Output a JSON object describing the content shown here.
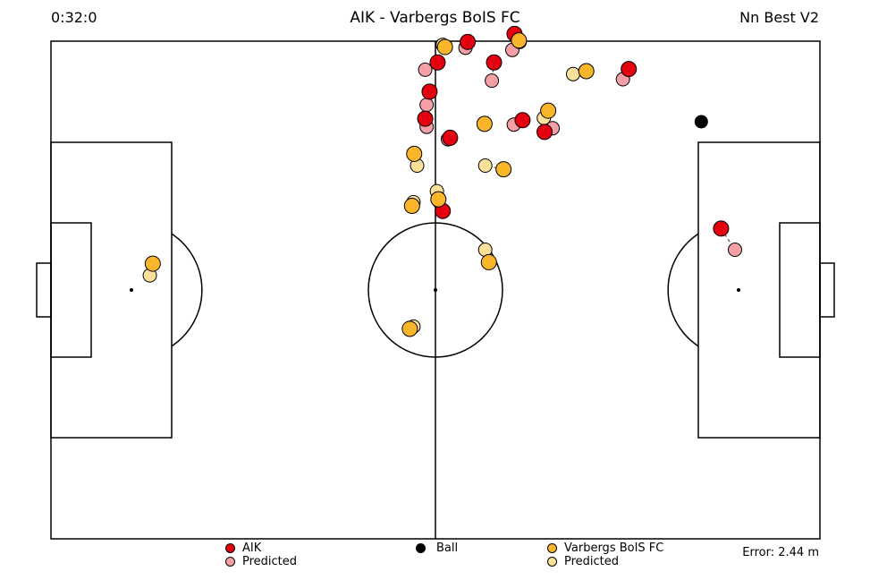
{
  "header": {
    "clock": "0:32:0",
    "title": "AIK - Varbergs BoIS FC",
    "model": "Nn Best V2"
  },
  "colors": {
    "aik": "#e3000f",
    "aik_pred": "#f4a0a6",
    "varberg": "#f9b62b",
    "varberg_pred": "#fde19b",
    "ball": "#000000",
    "lines": "#000000"
  },
  "legend": {
    "aik_label": "AIK",
    "aik_pred_label": "Predicted",
    "ball_label": "Ball",
    "varberg_label": "Varbergs BoIS FC",
    "varberg_pred_label": "Predicted"
  },
  "error": "Error: 2.44 m",
  "pitch": {
    "length_m": 105,
    "width_m": 68
  },
  "players": {
    "aik": [
      {
        "actual": [
          51.7,
          6.9
        ],
        "pred": [
          51.3,
          8.7
        ]
      },
      {
        "actual": [
          51.1,
          10.6
        ],
        "pred": [
          51.3,
          11.7
        ]
      },
      {
        "actual": [
          54.5,
          13.2
        ],
        "pred": [
          54.2,
          13.4
        ]
      },
      {
        "actual": [
          67.4,
          12.4
        ],
        "pred": [
          68.5,
          11.9
        ]
      },
      {
        "actual": [
          64.4,
          10.8
        ],
        "pred": [
          63.2,
          11.4
        ]
      },
      {
        "actual": [
          60.5,
          2.9
        ],
        "pred": [
          60.2,
          5.4
        ]
      },
      {
        "actual": [
          53.5,
          23.2
        ],
        "pred": [
          52.9,
          21.8
        ]
      },
      {
        "actual": [
          52.8,
          2.9
        ],
        "pred": [
          51.1,
          3.9
        ]
      },
      {
        "actual": [
          56.9,
          0.1
        ],
        "pred": [
          56.6,
          0.9
        ]
      },
      {
        "actual": [
          63.3,
          -1.0
        ],
        "pred": [
          63.0,
          1.2
        ]
      },
      {
        "actual": [
          78.9,
          3.8
        ],
        "pred": [
          78.1,
          5.2
        ]
      },
      {
        "actual": [
          91.5,
          25.6
        ],
        "pred": [
          93.4,
          28.5
        ]
      }
    ],
    "varberg": [
      {
        "actual": [
          13.9,
          30.4
        ],
        "pred": [
          13.5,
          32.0
        ]
      },
      {
        "actual": [
          49.0,
          39.3
        ],
        "pred": [
          49.5,
          39.0
        ]
      },
      {
        "actual": [
          49.3,
          22.5
        ],
        "pred": [
          49.5,
          22.0
        ]
      },
      {
        "actual": [
          52.9,
          21.6
        ],
        "pred": [
          52.7,
          20.5
        ]
      },
      {
        "actual": [
          59.8,
          30.2
        ],
        "pred": [
          59.3,
          28.5
        ]
      },
      {
        "actual": [
          49.6,
          15.4
        ],
        "pred": [
          50.0,
          17.0
        ]
      },
      {
        "actual": [
          53.8,
          0.8
        ],
        "pred": [
          53.5,
          0.5
        ]
      },
      {
        "actual": [
          61.8,
          17.5
        ],
        "pred": [
          59.3,
          17.0
        ]
      },
      {
        "actual": [
          59.2,
          11.3
        ],
        "pred": [
          59.1,
          11.3
        ]
      },
      {
        "actual": [
          63.9,
          -0.1
        ],
        "pred": [
          64.0,
          0.1
        ]
      },
      {
        "actual": [
          67.9,
          9.5
        ],
        "pred": [
          67.3,
          10.5
        ]
      },
      {
        "actual": [
          73.1,
          4.1
        ],
        "pred": [
          71.3,
          4.5
        ]
      }
    ],
    "ball": [
      88.8,
      11.0
    ]
  }
}
